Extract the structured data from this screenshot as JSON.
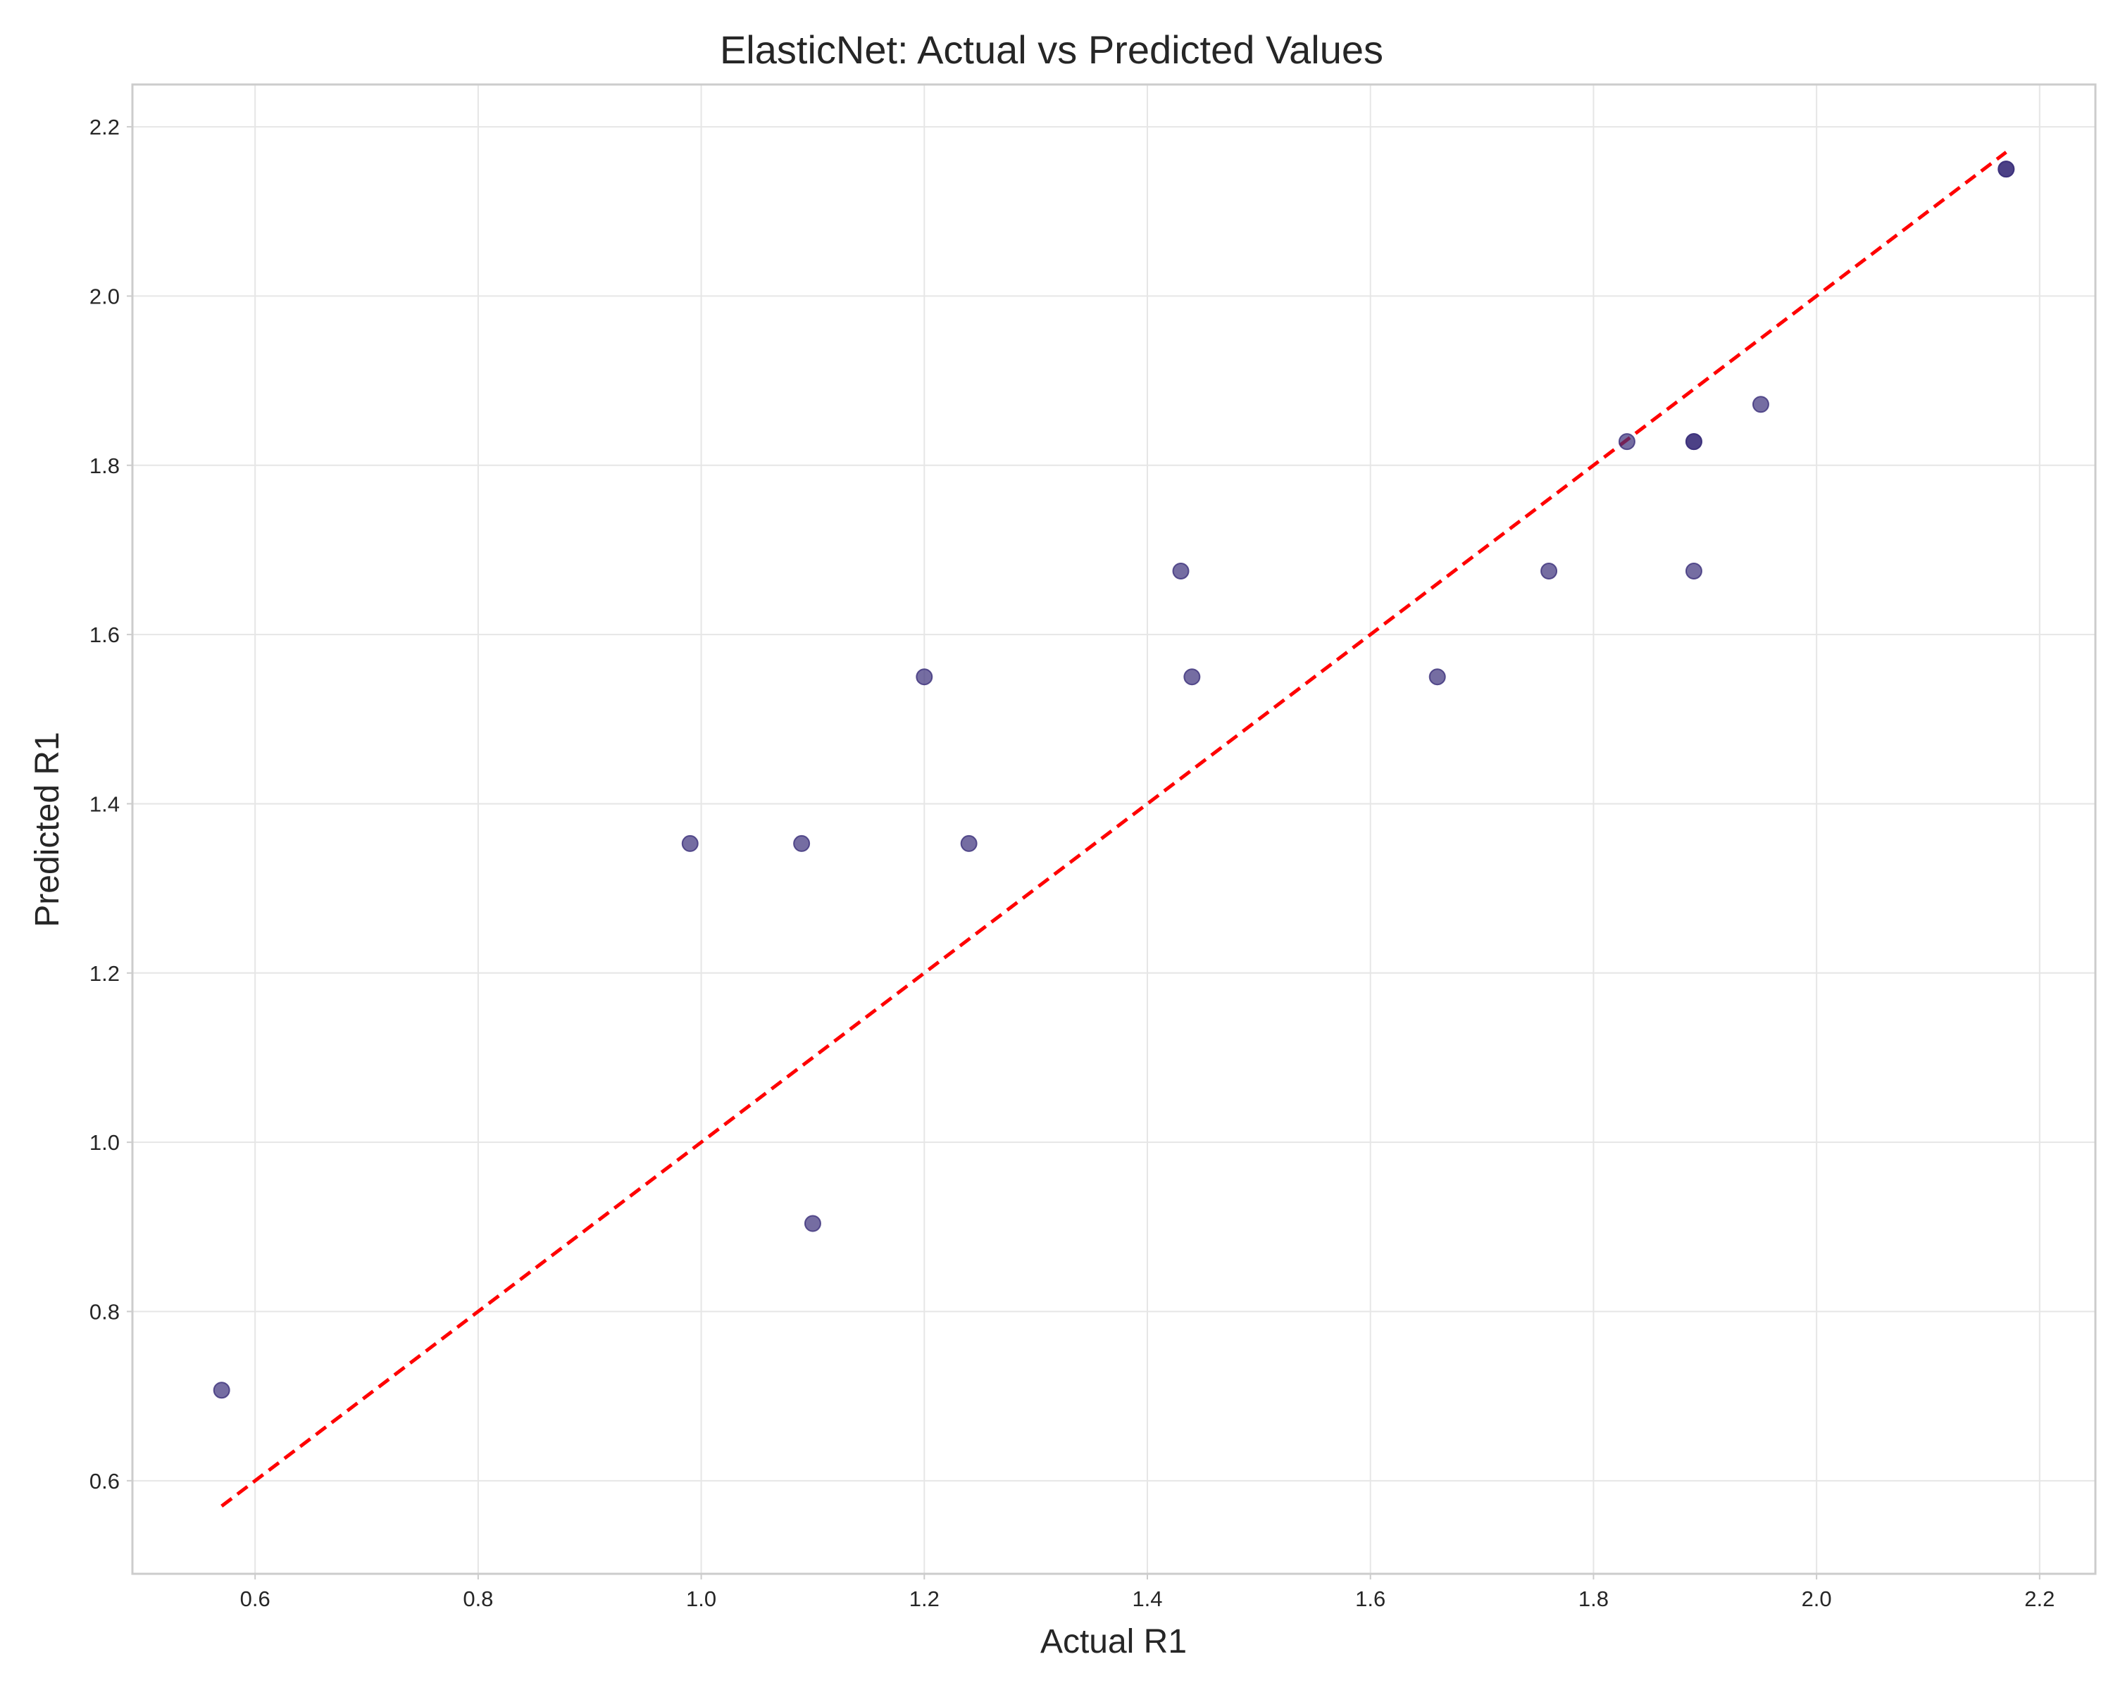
{
  "chart_data": {
    "type": "scatter",
    "title": "ElasticNet: Actual vs Predicted Values",
    "xlabel": "Actual R1",
    "ylabel": "Predicted R1",
    "xlim": [
      0.49,
      2.25
    ],
    "ylim": [
      0.49,
      2.25
    ],
    "xticks": [
      "0.6",
      "0.8",
      "1.0",
      "1.2",
      "1.4",
      "1.6",
      "1.8",
      "2.0",
      "2.2"
    ],
    "yticks": [
      "0.6",
      "0.8",
      "1.0",
      "1.2",
      "1.4",
      "1.6",
      "1.8",
      "2.0",
      "2.2"
    ],
    "grid": true,
    "colors": {
      "points": "#3b2f7a",
      "reference_line": "#ff0000"
    },
    "reference_line": {
      "x": [
        0.57,
        2.17
      ],
      "y": [
        0.57,
        2.17
      ],
      "style": "dashed"
    },
    "points": [
      {
        "x": 0.57,
        "y": 0.707
      },
      {
        "x": 0.99,
        "y": 1.353
      },
      {
        "x": 1.09,
        "y": 1.353
      },
      {
        "x": 1.1,
        "y": 0.904
      },
      {
        "x": 1.2,
        "y": 1.55
      },
      {
        "x": 1.24,
        "y": 1.353
      },
      {
        "x": 1.43,
        "y": 1.675
      },
      {
        "x": 1.44,
        "y": 1.55
      },
      {
        "x": 1.66,
        "y": 1.55
      },
      {
        "x": 1.76,
        "y": 1.675
      },
      {
        "x": 1.83,
        "y": 1.828
      },
      {
        "x": 1.89,
        "y": 1.828
      },
      {
        "x": 1.89,
        "y": 1.828
      },
      {
        "x": 1.89,
        "y": 1.675
      },
      {
        "x": 1.95,
        "y": 1.872
      },
      {
        "x": 2.17,
        "y": 2.15
      },
      {
        "x": 2.17,
        "y": 2.15
      }
    ]
  }
}
